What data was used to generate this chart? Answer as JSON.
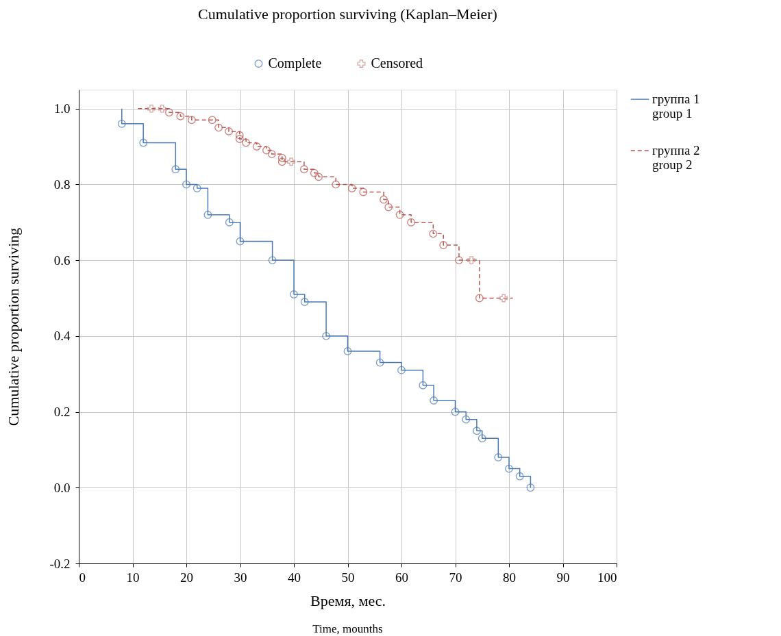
{
  "chart_data": {
    "type": "step",
    "title": "Cumulative proportion surviving (Kaplan–Meier)",
    "xlabel": "Время, мес.",
    "ylabel": "Cumulative proportion surviving",
    "annotations": [
      "Time, mounths"
    ],
    "xlim": [
      0,
      100
    ],
    "xticks": [
      0,
      10,
      20,
      30,
      40,
      50,
      60,
      70,
      80,
      90,
      100
    ],
    "ylim": [
      -0.2,
      1.05
    ],
    "yticks": [
      {
        "value": -0.2,
        "label": "-0.2"
      },
      {
        "value": 0,
        "label": "0.0"
      },
      {
        "value": 0.2,
        "label": "0.2"
      },
      {
        "value": 0.4,
        "label": "0.4"
      },
      {
        "value": 0.6,
        "label": "0.6"
      },
      {
        "value": 0.8,
        "label": "0.8"
      },
      {
        "value": 1,
        "label": "1.0"
      }
    ],
    "grid": true,
    "legend": "right",
    "series": [
      {
        "name": "группа 1\ngroup 1",
        "color": "#4a7ab5",
        "line_style": "solid",
        "marker": "none",
        "x": [
          8,
          8,
          12,
          18,
          20,
          22,
          24,
          28,
          30,
          36,
          40,
          42,
          46,
          50,
          56,
          60,
          64,
          66,
          70,
          72,
          74,
          75,
          78,
          80,
          82,
          84
        ],
        "values": [
          1.0,
          0.96,
          0.91,
          0.84,
          0.8,
          0.79,
          0.72,
          0.7,
          0.65,
          0.6,
          0.51,
          0.49,
          0.4,
          0.36,
          0.33,
          0.31,
          0.27,
          0.23,
          0.2,
          0.18,
          0.15,
          0.13,
          0.08,
          0.05,
          0.03,
          0.0
        ]
      },
      {
        "name": "группа 2\ngroup 2",
        "color": "#b85450",
        "line_style": "dashed",
        "marker": "none",
        "x": [
          11,
          16.8,
          18.9,
          21,
          24.8,
          26,
          27.9,
          29.9,
          29.9,
          31.1,
          33.1,
          34.9,
          35.9,
          37.8,
          37.8,
          41.9,
          43.8,
          44.6,
          47.8,
          50.8,
          52.9,
          56.7,
          57.6,
          59.7,
          61.8,
          65.9,
          67.8,
          70.7,
          74.5,
          80.7
        ],
        "values": [
          1.0,
          0.99,
          0.98,
          0.97,
          0.97,
          0.95,
          0.94,
          0.93,
          0.92,
          0.91,
          0.9,
          0.89,
          0.88,
          0.87,
          0.86,
          0.84,
          0.83,
          0.82,
          0.8,
          0.79,
          0.78,
          0.76,
          0.74,
          0.72,
          0.7,
          0.67,
          0.64,
          0.6,
          0.5,
          0.5
        ]
      },
      {
        "name": "Complete",
        "type": "scatter",
        "marker": "circle",
        "color": "#4a7ab5",
        "x": [
          8,
          12,
          18,
          20,
          22,
          24,
          28,
          30,
          36,
          40,
          42,
          46,
          50,
          56,
          60,
          64,
          66,
          70,
          72,
          74,
          75,
          78,
          80,
          82,
          84,
          16.8,
          18.9,
          21,
          24.8,
          26,
          27.9,
          29.9,
          29.9,
          31.1,
          33.1,
          34.9,
          35.9,
          37.8,
          37.8,
          41.9,
          43.8,
          44.6,
          47.8,
          50.8,
          52.9,
          56.7,
          57.6,
          59.7,
          61.8,
          65.9,
          67.8,
          70.7,
          74.5
        ],
        "values": [
          0.96,
          0.91,
          0.84,
          0.8,
          0.79,
          0.72,
          0.7,
          0.65,
          0.6,
          0.51,
          0.49,
          0.4,
          0.36,
          0.33,
          0.31,
          0.27,
          0.23,
          0.2,
          0.18,
          0.15,
          0.13,
          0.08,
          0.05,
          0.03,
          0.0,
          0.99,
          0.98,
          0.97,
          0.97,
          0.95,
          0.94,
          0.93,
          0.92,
          0.91,
          0.9,
          0.89,
          0.88,
          0.87,
          0.86,
          0.84,
          0.83,
          0.82,
          0.8,
          0.79,
          0.78,
          0.76,
          0.74,
          0.72,
          0.7,
          0.67,
          0.64,
          0.6,
          0.5
        ],
        "colors": [
          "#4a7ab5",
          "#4a7ab5",
          "#4a7ab5",
          "#4a7ab5",
          "#4a7ab5",
          "#4a7ab5",
          "#4a7ab5",
          "#4a7ab5",
          "#4a7ab5",
          "#4a7ab5",
          "#4a7ab5",
          "#4a7ab5",
          "#4a7ab5",
          "#4a7ab5",
          "#4a7ab5",
          "#4a7ab5",
          "#4a7ab5",
          "#4a7ab5",
          "#4a7ab5",
          "#4a7ab5",
          "#4a7ab5",
          "#4a7ab5",
          "#4a7ab5",
          "#4a7ab5",
          "#4a7ab5",
          "#b85450",
          "#b85450",
          "#b85450",
          "#b85450",
          "#b85450",
          "#b85450",
          "#b85450",
          "#b85450",
          "#b85450",
          "#b85450",
          "#b85450",
          "#b85450",
          "#b85450",
          "#b85450",
          "#b85450",
          "#b85450",
          "#b85450",
          "#b85450",
          "#b85450",
          "#b85450",
          "#b85450",
          "#b85450",
          "#b85450",
          "#b85450",
          "#b85450",
          "#b85450",
          "#b85450",
          "#b85450"
        ]
      },
      {
        "name": "Censored",
        "type": "scatter",
        "marker": "cross",
        "color": "#c98a88",
        "x": [
          13.5,
          15.5,
          39.5,
          73,
          79
        ],
        "values": [
          1.0,
          1.0,
          0.86,
          0.6,
          0.5
        ]
      }
    ]
  }
}
